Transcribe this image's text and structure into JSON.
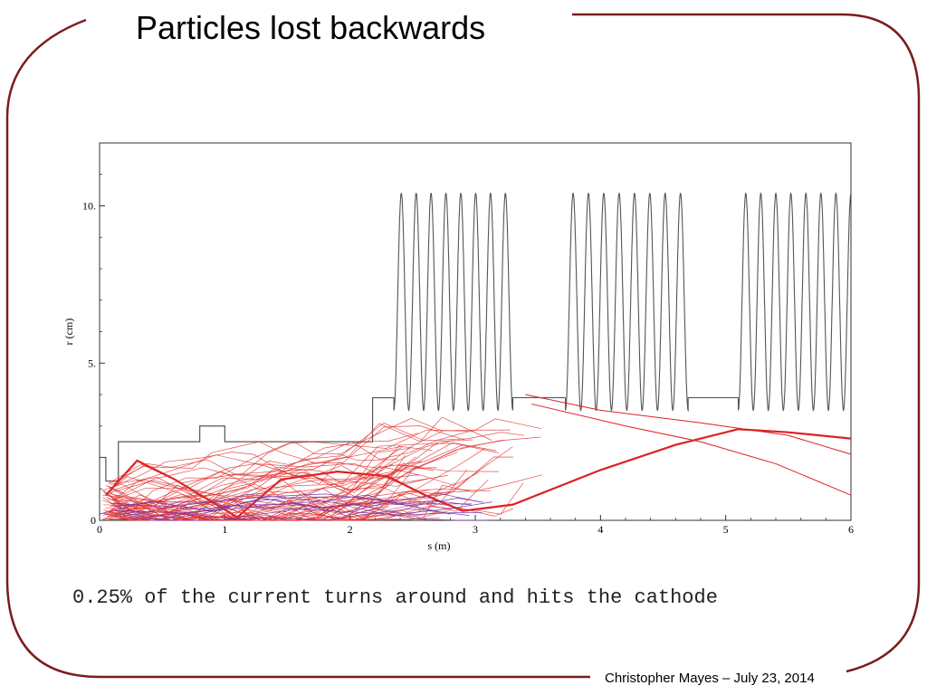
{
  "slide": {
    "title": "Particles lost backwards",
    "caption": "0.25% of the current turns around and hits the cathode",
    "footer": "Christopher Mayes – July 23, 2014",
    "accent_color": "#7b1c1c"
  },
  "chart_data": {
    "type": "line",
    "xlabel": "s (m)",
    "ylabel": "r (cm)",
    "xlim": [
      0,
      6
    ],
    "ylim": [
      0,
      12
    ],
    "x_ticks": [
      0,
      1,
      2,
      3,
      4,
      5,
      6
    ],
    "x_tick_labels": [
      "0",
      "1",
      "2",
      "3",
      "4",
      "5",
      "6"
    ],
    "y_ticks": [
      0,
      5,
      10
    ],
    "y_tick_labels": [
      "0",
      "5.",
      "10."
    ],
    "grid": false,
    "series": [
      {
        "color": "#555555",
        "kind": "boundary",
        "points": [
          [
            0,
            2
          ],
          [
            0.05,
            2
          ],
          [
            0.05,
            1.25
          ],
          [
            0.15,
            1.25
          ],
          [
            0.15,
            2.5
          ],
          [
            0.8,
            2.5
          ],
          [
            0.8,
            3
          ],
          [
            1.0,
            3
          ],
          [
            1.0,
            2.5
          ],
          [
            2.18,
            2.5
          ],
          [
            2.18,
            3.9
          ],
          [
            2.35,
            3.9
          ]
        ]
      },
      {
        "color": "#555555",
        "kind": "cavities",
        "sections": [
          {
            "start": 2.35,
            "end": 3.3,
            "cells": 8
          },
          {
            "start": 3.72,
            "end": 4.7,
            "cells": 8
          },
          {
            "start": 5.1,
            "end": 6.0,
            "cells": 7.5
          }
        ],
        "flat_r": 3.9,
        "peak_r": 10.4,
        "low_r": 3.5
      },
      {
        "color": "#dd2222",
        "kind": "trajectory-bundle",
        "points": [
          [
            0.05,
            0.8
          ],
          [
            0.3,
            1.9
          ],
          [
            0.6,
            1.3
          ],
          [
            1.1,
            0.1
          ],
          [
            1.45,
            1.3
          ],
          [
            1.9,
            1.55
          ],
          [
            2.3,
            1.4
          ],
          [
            2.6,
            0.8
          ],
          [
            2.9,
            0.3
          ],
          [
            3.3,
            0.5
          ],
          [
            4.0,
            1.6
          ],
          [
            4.6,
            2.4
          ],
          [
            5.1,
            2.9
          ],
          [
            5.5,
            2.8
          ],
          [
            6.0,
            2.6
          ]
        ]
      },
      {
        "color": "#dd2222",
        "kind": "trajectory",
        "points": [
          [
            3.4,
            4.0
          ],
          [
            4.0,
            3.5
          ],
          [
            4.8,
            3.1
          ],
          [
            5.5,
            2.7
          ],
          [
            6.0,
            2.1
          ]
        ]
      },
      {
        "color": "#dd2222",
        "kind": "trajectory",
        "points": [
          [
            3.45,
            3.7
          ],
          [
            4.2,
            3.0
          ],
          [
            4.8,
            2.5
          ],
          [
            5.4,
            1.8
          ],
          [
            6.0,
            0.8
          ]
        ]
      },
      {
        "color": "#7a3aa8",
        "kind": "trajectory",
        "points": [
          [
            0,
            0.2
          ],
          [
            0.4,
            0.6
          ],
          [
            0.9,
            0.3
          ],
          [
            1.3,
            0.7
          ],
          [
            1.8,
            0.4
          ],
          [
            2.3,
            0.6
          ],
          [
            2.8,
            0.2
          ]
        ]
      }
    ]
  }
}
